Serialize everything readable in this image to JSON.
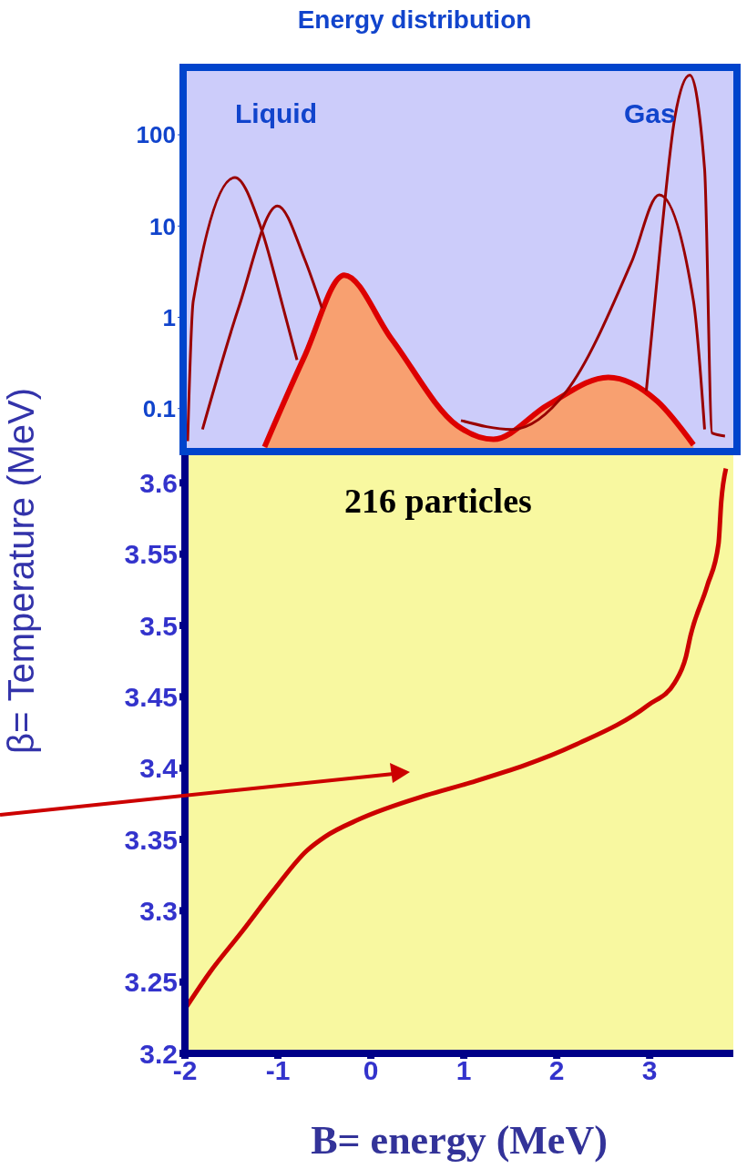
{
  "chart_data": [
    {
      "type": "line",
      "title": "Energy distribution",
      "log": "y",
      "xlim": [
        -2,
        3.9
      ],
      "ylim": [
        0.037,
        500
      ],
      "yticks": [
        0.1,
        1,
        10,
        100
      ],
      "tick_labels": "y",
      "annotations": [
        "Liquid",
        "Gas"
      ],
      "series": [
        {
          "color": "#990000",
          "x": [
            -1.99,
            -1.93,
            -1.48,
            -1.2,
            -0.97,
            -0.81,
            null,
            0.96,
            1.51,
            2.1,
            2.8,
            3.1,
            3.47,
            3.59
          ],
          "values": [
            0.044,
            1.5,
            34,
            9.6,
            1.4,
            0.34,
            null,
            0.074,
            0.059,
            0.155,
            4,
            22,
            1.5,
            0.059
          ]
        },
        {
          "color": "#990000",
          "x": [
            -1.83,
            -1.44,
            -1.02,
            -0.73,
            -0.54,
            null,
            2.96,
            3.12,
            3.27,
            3.43,
            3.59,
            3.67,
            3.81
          ],
          "values": [
            0.059,
            1.27,
            16.6,
            4.4,
            1.26,
            null,
            0.155,
            7.4,
            158,
            450,
            42,
            0.054,
            0.05
          ]
        },
        {
          "type": "area",
          "color": "#f8a070",
          "x": [
            -1.16,
            -0.73,
            -0.3,
            0.21,
            0.92,
            1.31,
            1.9,
            2.55,
            3.08,
            3.47
          ],
          "values": [
            0.038,
            0.37,
            2.9,
            0.58,
            0.065,
            0.046,
            0.11,
            0.22,
            0.12,
            0.04
          ]
        }
      ]
    },
    {
      "type": "line",
      "xlabel": "B= energy (MeV)",
      "ylabel": "β= Temperature (MeV)",
      "xlim": [
        -2,
        3.9
      ],
      "ylim": [
        3.2,
        3.62
      ],
      "xticks": [
        -2,
        -1,
        0,
        1,
        2,
        3
      ],
      "yticks": [
        3.2,
        3.25,
        3.3,
        3.35,
        3.4,
        3.45,
        3.5,
        3.55,
        3.6
      ],
      "annotations": [
        "216 particles"
      ],
      "series": [
        {
          "color": "#cc0000",
          "x": [
            -2.0,
            -1.73,
            -1.39,
            -1.05,
            -0.69,
            -0.49,
            -0.13,
            0.6,
            1.08,
            2.19,
            2.98,
            3.27,
            3.39,
            3.44,
            3.62,
            3.74,
            3.77,
            3.82
          ],
          "values": [
            3.231,
            3.257,
            3.285,
            3.314,
            3.342,
            3.352,
            3.364,
            3.381,
            3.39,
            3.416,
            3.444,
            3.46,
            3.478,
            3.493,
            3.528,
            3.557,
            3.587,
            3.61
          ]
        }
      ]
    }
  ]
}
